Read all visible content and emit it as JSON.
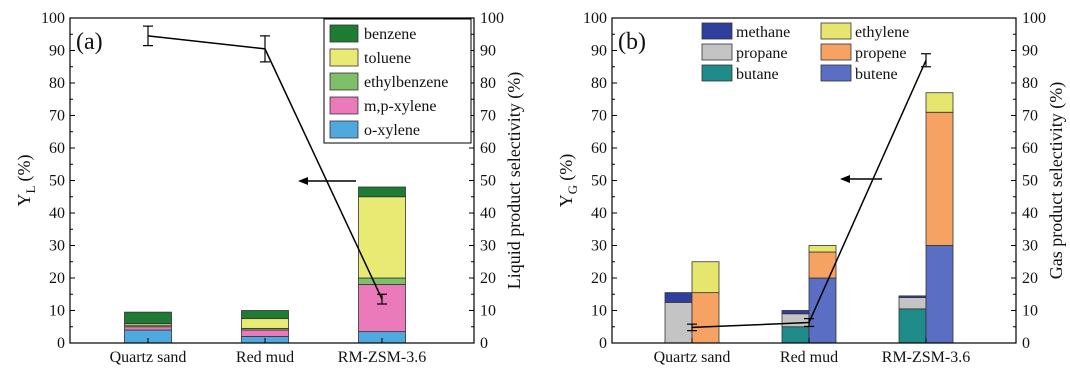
{
  "chart_data": [
    {
      "type": "bar",
      "panel_label": "(a)",
      "categories": [
        "Quartz sand",
        "Red mud",
        "RM-ZSM-3.6"
      ],
      "ylabel_main": "Y",
      "ylabel_sub": "L",
      "ylabel_unit": "(%)",
      "y2label": "Liquid product selectivity (%)",
      "ylim": [
        0,
        100
      ],
      "y2lim": [
        0,
        100
      ],
      "yticks": [
        0,
        10,
        20,
        30,
        40,
        50,
        60,
        70,
        80,
        90,
        100
      ],
      "stack_order": [
        "o-xylene",
        "m,p-xylene",
        "ethylbenzene",
        "toluene",
        "benzene"
      ],
      "series": [
        {
          "name": "benzene",
          "color": "#1e7b34",
          "values": [
            3.5,
            2.5,
            3.0
          ]
        },
        {
          "name": "toluene",
          "color": "#e8ea74",
          "values": [
            0.5,
            3.0,
            25.0
          ]
        },
        {
          "name": "ethylbenzene",
          "color": "#7dbf6b",
          "values": [
            0.5,
            0.5,
            2.0
          ]
        },
        {
          "name": "m,p-xylene",
          "color": "#ea7ab9",
          "values": [
            1.0,
            2.0,
            14.5
          ]
        },
        {
          "name": "o-xylene",
          "color": "#4fa8de",
          "values": [
            4.0,
            2.0,
            3.5
          ]
        }
      ],
      "line": {
        "values": [
          94.5,
          90.5,
          13.5
        ],
        "errors": [
          3.0,
          4.0,
          1.5
        ]
      },
      "arrow_direction": "left",
      "legend": "top-right"
    },
    {
      "type": "bar",
      "panel_label": "(b)",
      "categories": [
        "Quartz sand",
        "Red mud",
        "RM-ZSM-3.6"
      ],
      "ylabel_main": "Y",
      "ylabel_sub": "G",
      "ylabel_unit": "(%)",
      "y2label": "Gas product selectivity (%)",
      "ylim": [
        0,
        100
      ],
      "y2lim": [
        0,
        100
      ],
      "yticks": [
        0,
        10,
        20,
        30,
        40,
        50,
        60,
        70,
        80,
        90,
        100
      ],
      "left_stack_order": [
        "butane",
        "propane",
        "methane"
      ],
      "right_stack_order": [
        "butene",
        "propene",
        "ethylene"
      ],
      "series": [
        {
          "name": "methane",
          "color": "#2f3f9e",
          "values": [
            3.0,
            1.0,
            0.5
          ]
        },
        {
          "name": "ethylene",
          "color": "#e6e66e",
          "values": [
            9.5,
            2.0,
            6.0
          ]
        },
        {
          "name": "propane",
          "color": "#c4c4c4",
          "values": [
            12.5,
            4.0,
            3.5
          ]
        },
        {
          "name": "propene",
          "color": "#f5a262",
          "values": [
            15.5,
            8.0,
            41.0
          ]
        },
        {
          "name": "butane",
          "color": "#1f8c8a",
          "values": [
            0.0,
            5.0,
            10.5
          ]
        },
        {
          "name": "butene",
          "color": "#5a6fc4",
          "values": [
            0.0,
            20.0,
            30.0
          ]
        }
      ],
      "line": {
        "values": [
          4.8,
          6.3,
          87.0
        ],
        "errors": [
          1.0,
          1.2,
          2.0
        ]
      },
      "arrow_direction": "left",
      "legend": "top-center"
    }
  ]
}
